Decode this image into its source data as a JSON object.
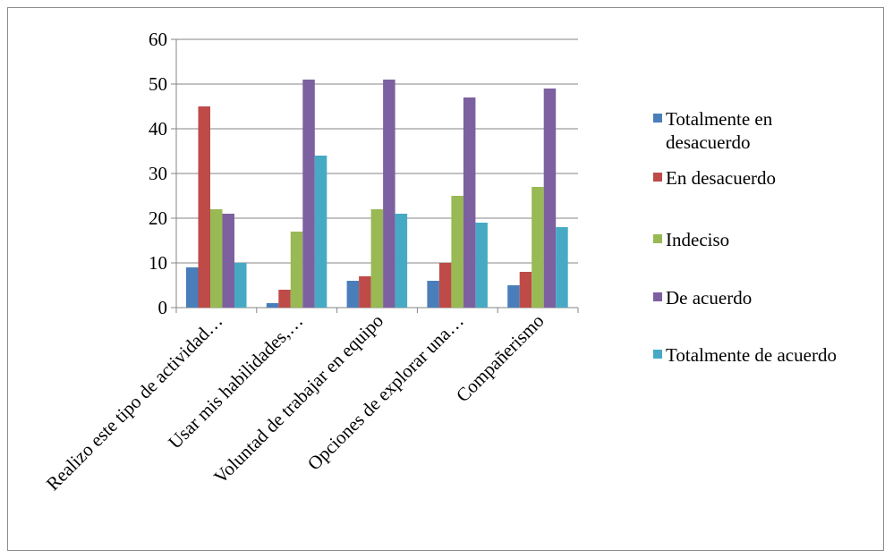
{
  "chart_data": {
    "type": "bar",
    "categories": [
      "Realizo este tipo de actividad…",
      "Usar mis habilidades,…",
      "Voluntad de trabajar en equipo",
      "Opciones de explorar una…",
      "Compañerismo"
    ],
    "series": [
      {
        "name": "Totalmente en desacuerdo",
        "name_lines": [
          "Totalmente en",
          "desacuerdo"
        ],
        "color": "#4a7ebb",
        "values": [
          9,
          1,
          6,
          6,
          5
        ]
      },
      {
        "name": "En desacuerdo",
        "name_lines": [
          "En desacuerdo"
        ],
        "color": "#be4b48",
        "values": [
          45,
          4,
          7,
          10,
          8
        ]
      },
      {
        "name": "Indeciso",
        "name_lines": [
          "Indeciso"
        ],
        "color": "#98b954",
        "values": [
          22,
          17,
          22,
          25,
          27
        ]
      },
      {
        "name": "De acuerdo",
        "name_lines": [
          "De acuerdo"
        ],
        "color": "#7d60a0",
        "values": [
          21,
          51,
          51,
          47,
          49
        ]
      },
      {
        "name": "Totalmente de acuerdo",
        "name_lines": [
          "Totalmente de acuerdo"
        ],
        "color": "#46aac5",
        "values": [
          10,
          34,
          21,
          19,
          18
        ]
      }
    ],
    "yticks": [
      "0",
      "10",
      "20",
      "30",
      "40",
      "50",
      "60"
    ],
    "ylim": [
      0,
      60
    ],
    "grid": true,
    "legend": "right",
    "title": "",
    "xlabel": "",
    "ylabel": ""
  }
}
